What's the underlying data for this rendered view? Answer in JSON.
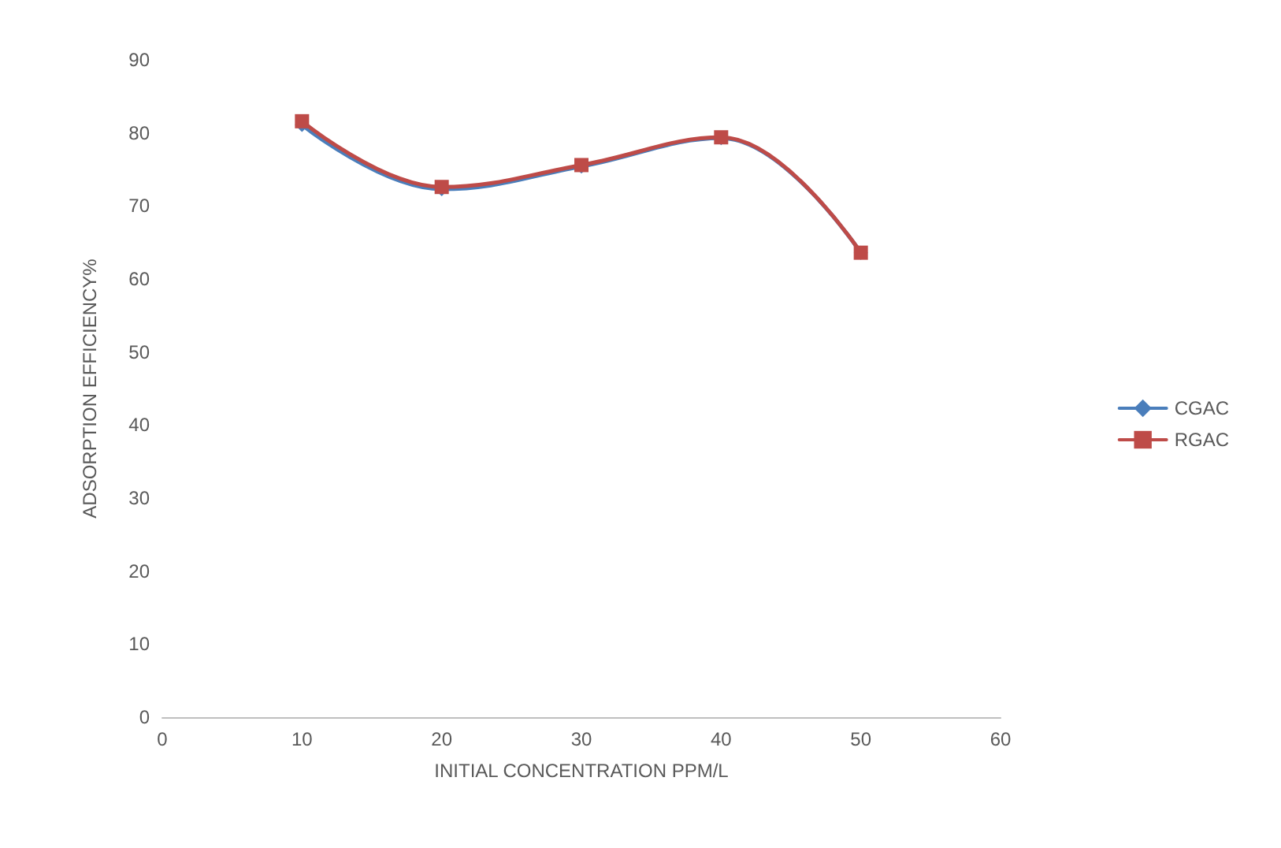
{
  "chart_data": {
    "type": "line",
    "xlabel": "INITIAL CONCENTRATION PPM/L",
    "ylabel": "ADSORPTION EFFICIENCY%",
    "x": [
      10,
      20,
      30,
      40,
      50
    ],
    "series": [
      {
        "name": "CGAC",
        "color": "#4a7ebb",
        "marker": "diamond",
        "values": [
          81.1,
          72.3,
          75.4,
          79.3,
          63.6
        ]
      },
      {
        "name": "RGAC",
        "color": "#be4b48",
        "marker": "square",
        "values": [
          81.6,
          72.6,
          75.6,
          79.4,
          63.6
        ]
      }
    ],
    "xlim": [
      0,
      60
    ],
    "xticks": [
      0,
      10,
      20,
      30,
      40,
      50,
      60
    ],
    "ylim": [
      0,
      90
    ],
    "yticks": [
      0,
      10,
      20,
      30,
      40,
      50,
      60,
      70,
      80,
      90
    ],
    "grid": false,
    "legend": "right",
    "line_style": "solid"
  }
}
